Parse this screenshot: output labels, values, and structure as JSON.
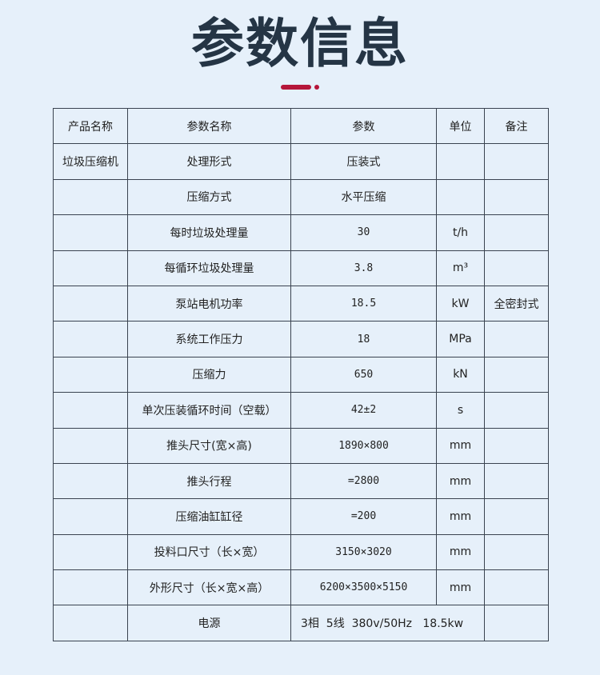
{
  "title": "参数信息",
  "accent_color": "#b5163a",
  "headers": [
    "产品名称",
    "参数名称",
    "参数",
    "单位",
    "备注"
  ],
  "rows": [
    {
      "product": "垃圾压缩机",
      "name": "处理形式",
      "value": "压装式",
      "unit": "",
      "note": ""
    },
    {
      "product": "",
      "name": "压缩方式",
      "value": "水平压缩",
      "unit": "",
      "note": ""
    },
    {
      "product": "",
      "name": "每时垃圾处理量",
      "value": "30",
      "unit": "t/h",
      "note": ""
    },
    {
      "product": "",
      "name": "每循环垃圾处理量",
      "value": "3.8",
      "unit": "m³",
      "note": ""
    },
    {
      "product": "",
      "name": "泵站电机功率",
      "value": "18.5",
      "unit": "kW",
      "note": "全密封式"
    },
    {
      "product": "",
      "name": "系统工作压力",
      "value": "18",
      "unit": "MPa",
      "note": ""
    },
    {
      "product": "",
      "name": "压缩力",
      "value": "650",
      "unit": "kN",
      "note": ""
    },
    {
      "product": "",
      "name": "单次压装循环时间（空载）",
      "value": "42±2",
      "unit": "s",
      "note": ""
    },
    {
      "product": "",
      "name": "推头尺寸(宽×高)",
      "value": "1890×800",
      "unit": "mm",
      "note": ""
    },
    {
      "product": "",
      "name": "推头行程",
      "value": "=2800",
      "unit": "mm",
      "note": ""
    },
    {
      "product": "",
      "name": "压缩油缸缸径",
      "value": "=200",
      "unit": "mm",
      "note": ""
    },
    {
      "product": "",
      "name": "投料口尺寸（长×宽）",
      "value": "3150×3020",
      "unit": "mm",
      "note": ""
    },
    {
      "product": "",
      "name": "外形尺寸（长×宽×高）",
      "value": "6200×3500×5150",
      "unit": "mm",
      "note": ""
    }
  ],
  "power_row": {
    "product": "",
    "name": "电源",
    "value": "3相  5线  380v/50Hz   18.5kw",
    "note": ""
  }
}
